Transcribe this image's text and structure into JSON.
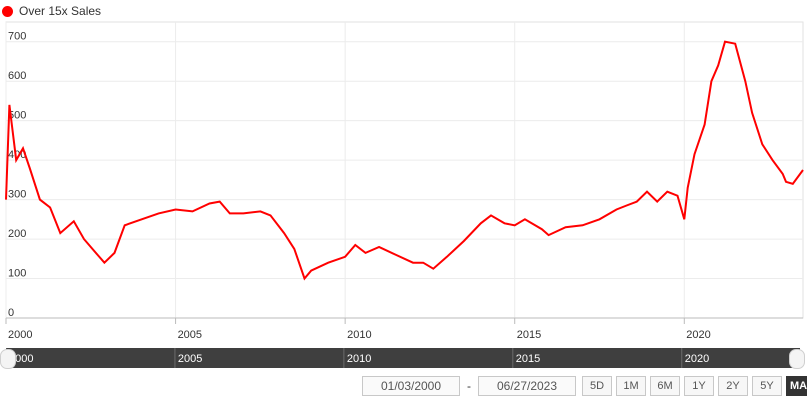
{
  "legend": {
    "label": "Over 15x Sales",
    "color": "#ff0000"
  },
  "range": {
    "from": "01/03/2000",
    "separator": "-",
    "to": "06/27/2023"
  },
  "buttons": [
    {
      "label": "5D",
      "active": false
    },
    {
      "label": "1M",
      "active": false
    },
    {
      "label": "6M",
      "active": false
    },
    {
      "label": "1Y",
      "active": false
    },
    {
      "label": "2Y",
      "active": false
    },
    {
      "label": "5Y",
      "active": false
    },
    {
      "label": "MAX",
      "active": true
    }
  ],
  "navigator": {
    "labels": [
      "2000",
      "2005",
      "2010",
      "2015",
      "2020"
    ]
  },
  "chart_data": {
    "type": "line",
    "series": [
      {
        "name": "Over 15x Sales",
        "color": "#ff0000",
        "x": [
          2000.0,
          2000.1,
          2000.3,
          2000.5,
          2000.7,
          2001.0,
          2001.3,
          2001.6,
          2002.0,
          2002.3,
          2002.7,
          2002.9,
          2003.2,
          2003.5,
          2004.0,
          2004.5,
          2005.0,
          2005.5,
          2006.0,
          2006.3,
          2006.6,
          2007.0,
          2007.5,
          2007.8,
          2008.2,
          2008.5,
          2008.8,
          2009.0,
          2009.5,
          2010.0,
          2010.3,
          2010.6,
          2011.0,
          2011.5,
          2012.0,
          2012.3,
          2012.6,
          2013.0,
          2013.5,
          2014.0,
          2014.3,
          2014.7,
          2015.0,
          2015.3,
          2015.8,
          2016.0,
          2016.5,
          2017.0,
          2017.5,
          2018.0,
          2018.3,
          2018.6,
          2018.9,
          2019.2,
          2019.5,
          2019.8,
          2020.0,
          2020.1,
          2020.3,
          2020.6,
          2020.8,
          2021.0,
          2021.2,
          2021.5,
          2021.8,
          2022.0,
          2022.3,
          2022.6,
          2022.9,
          2023.0,
          2023.2,
          2023.5
        ],
        "values": [
          300,
          540,
          400,
          430,
          380,
          300,
          280,
          215,
          245,
          200,
          160,
          140,
          165,
          235,
          250,
          265,
          275,
          270,
          290,
          295,
          265,
          265,
          270,
          260,
          215,
          175,
          100,
          120,
          140,
          155,
          185,
          165,
          180,
          160,
          140,
          140,
          125,
          155,
          195,
          240,
          260,
          240,
          235,
          250,
          225,
          210,
          230,
          235,
          250,
          275,
          285,
          295,
          320,
          295,
          320,
          310,
          250,
          330,
          415,
          490,
          600,
          640,
          700,
          695,
          600,
          520,
          440,
          400,
          365,
          345,
          340,
          375
        ]
      }
    ],
    "xlim": [
      2000.0,
      2023.5
    ],
    "ylim": [
      0,
      750
    ],
    "yticks": [
      0,
      100,
      200,
      300,
      400,
      500,
      600,
      700
    ],
    "xticks": [
      2000,
      2005,
      2010,
      2015,
      2020
    ],
    "grid": true,
    "legend_position": "top-left"
  }
}
